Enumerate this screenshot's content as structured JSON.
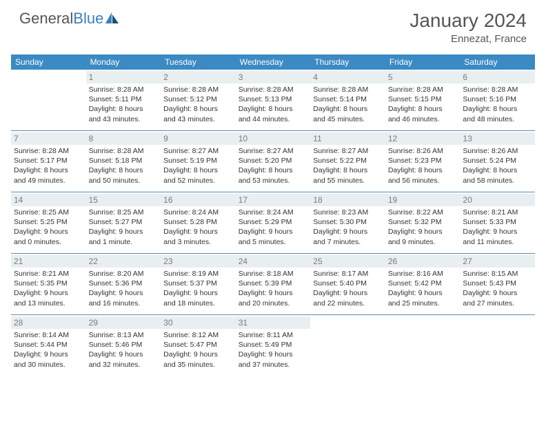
{
  "brand": {
    "part1": "General",
    "part2": "Blue"
  },
  "title": "January 2024",
  "location": "Ennezat, France",
  "colors": {
    "header_bg": "#3b8ac4",
    "week_border": "#5a8bb5",
    "daynum_bg": "#e9eef1",
    "text_muted": "#7a7a7a"
  },
  "weekdays": [
    "Sunday",
    "Monday",
    "Tuesday",
    "Wednesday",
    "Thursday",
    "Friday",
    "Saturday"
  ],
  "weeks": [
    [
      {
        "n": "",
        "lines": []
      },
      {
        "n": "1",
        "lines": [
          "Sunrise: 8:28 AM",
          "Sunset: 5:11 PM",
          "Daylight: 8 hours",
          "and 43 minutes."
        ]
      },
      {
        "n": "2",
        "lines": [
          "Sunrise: 8:28 AM",
          "Sunset: 5:12 PM",
          "Daylight: 8 hours",
          "and 43 minutes."
        ]
      },
      {
        "n": "3",
        "lines": [
          "Sunrise: 8:28 AM",
          "Sunset: 5:13 PM",
          "Daylight: 8 hours",
          "and 44 minutes."
        ]
      },
      {
        "n": "4",
        "lines": [
          "Sunrise: 8:28 AM",
          "Sunset: 5:14 PM",
          "Daylight: 8 hours",
          "and 45 minutes."
        ]
      },
      {
        "n": "5",
        "lines": [
          "Sunrise: 8:28 AM",
          "Sunset: 5:15 PM",
          "Daylight: 8 hours",
          "and 46 minutes."
        ]
      },
      {
        "n": "6",
        "lines": [
          "Sunrise: 8:28 AM",
          "Sunset: 5:16 PM",
          "Daylight: 8 hours",
          "and 48 minutes."
        ]
      }
    ],
    [
      {
        "n": "7",
        "lines": [
          "Sunrise: 8:28 AM",
          "Sunset: 5:17 PM",
          "Daylight: 8 hours",
          "and 49 minutes."
        ]
      },
      {
        "n": "8",
        "lines": [
          "Sunrise: 8:28 AM",
          "Sunset: 5:18 PM",
          "Daylight: 8 hours",
          "and 50 minutes."
        ]
      },
      {
        "n": "9",
        "lines": [
          "Sunrise: 8:27 AM",
          "Sunset: 5:19 PM",
          "Daylight: 8 hours",
          "and 52 minutes."
        ]
      },
      {
        "n": "10",
        "lines": [
          "Sunrise: 8:27 AM",
          "Sunset: 5:20 PM",
          "Daylight: 8 hours",
          "and 53 minutes."
        ]
      },
      {
        "n": "11",
        "lines": [
          "Sunrise: 8:27 AM",
          "Sunset: 5:22 PM",
          "Daylight: 8 hours",
          "and 55 minutes."
        ]
      },
      {
        "n": "12",
        "lines": [
          "Sunrise: 8:26 AM",
          "Sunset: 5:23 PM",
          "Daylight: 8 hours",
          "and 56 minutes."
        ]
      },
      {
        "n": "13",
        "lines": [
          "Sunrise: 8:26 AM",
          "Sunset: 5:24 PM",
          "Daylight: 8 hours",
          "and 58 minutes."
        ]
      }
    ],
    [
      {
        "n": "14",
        "lines": [
          "Sunrise: 8:25 AM",
          "Sunset: 5:25 PM",
          "Daylight: 9 hours",
          "and 0 minutes."
        ]
      },
      {
        "n": "15",
        "lines": [
          "Sunrise: 8:25 AM",
          "Sunset: 5:27 PM",
          "Daylight: 9 hours",
          "and 1 minute."
        ]
      },
      {
        "n": "16",
        "lines": [
          "Sunrise: 8:24 AM",
          "Sunset: 5:28 PM",
          "Daylight: 9 hours",
          "and 3 minutes."
        ]
      },
      {
        "n": "17",
        "lines": [
          "Sunrise: 8:24 AM",
          "Sunset: 5:29 PM",
          "Daylight: 9 hours",
          "and 5 minutes."
        ]
      },
      {
        "n": "18",
        "lines": [
          "Sunrise: 8:23 AM",
          "Sunset: 5:30 PM",
          "Daylight: 9 hours",
          "and 7 minutes."
        ]
      },
      {
        "n": "19",
        "lines": [
          "Sunrise: 8:22 AM",
          "Sunset: 5:32 PM",
          "Daylight: 9 hours",
          "and 9 minutes."
        ]
      },
      {
        "n": "20",
        "lines": [
          "Sunrise: 8:21 AM",
          "Sunset: 5:33 PM",
          "Daylight: 9 hours",
          "and 11 minutes."
        ]
      }
    ],
    [
      {
        "n": "21",
        "lines": [
          "Sunrise: 8:21 AM",
          "Sunset: 5:35 PM",
          "Daylight: 9 hours",
          "and 13 minutes."
        ]
      },
      {
        "n": "22",
        "lines": [
          "Sunrise: 8:20 AM",
          "Sunset: 5:36 PM",
          "Daylight: 9 hours",
          "and 16 minutes."
        ]
      },
      {
        "n": "23",
        "lines": [
          "Sunrise: 8:19 AM",
          "Sunset: 5:37 PM",
          "Daylight: 9 hours",
          "and 18 minutes."
        ]
      },
      {
        "n": "24",
        "lines": [
          "Sunrise: 8:18 AM",
          "Sunset: 5:39 PM",
          "Daylight: 9 hours",
          "and 20 minutes."
        ]
      },
      {
        "n": "25",
        "lines": [
          "Sunrise: 8:17 AM",
          "Sunset: 5:40 PM",
          "Daylight: 9 hours",
          "and 22 minutes."
        ]
      },
      {
        "n": "26",
        "lines": [
          "Sunrise: 8:16 AM",
          "Sunset: 5:42 PM",
          "Daylight: 9 hours",
          "and 25 minutes."
        ]
      },
      {
        "n": "27",
        "lines": [
          "Sunrise: 8:15 AM",
          "Sunset: 5:43 PM",
          "Daylight: 9 hours",
          "and 27 minutes."
        ]
      }
    ],
    [
      {
        "n": "28",
        "lines": [
          "Sunrise: 8:14 AM",
          "Sunset: 5:44 PM",
          "Daylight: 9 hours",
          "and 30 minutes."
        ]
      },
      {
        "n": "29",
        "lines": [
          "Sunrise: 8:13 AM",
          "Sunset: 5:46 PM",
          "Daylight: 9 hours",
          "and 32 minutes."
        ]
      },
      {
        "n": "30",
        "lines": [
          "Sunrise: 8:12 AM",
          "Sunset: 5:47 PM",
          "Daylight: 9 hours",
          "and 35 minutes."
        ]
      },
      {
        "n": "31",
        "lines": [
          "Sunrise: 8:11 AM",
          "Sunset: 5:49 PM",
          "Daylight: 9 hours",
          "and 37 minutes."
        ]
      },
      {
        "n": "",
        "lines": []
      },
      {
        "n": "",
        "lines": []
      },
      {
        "n": "",
        "lines": []
      }
    ]
  ]
}
